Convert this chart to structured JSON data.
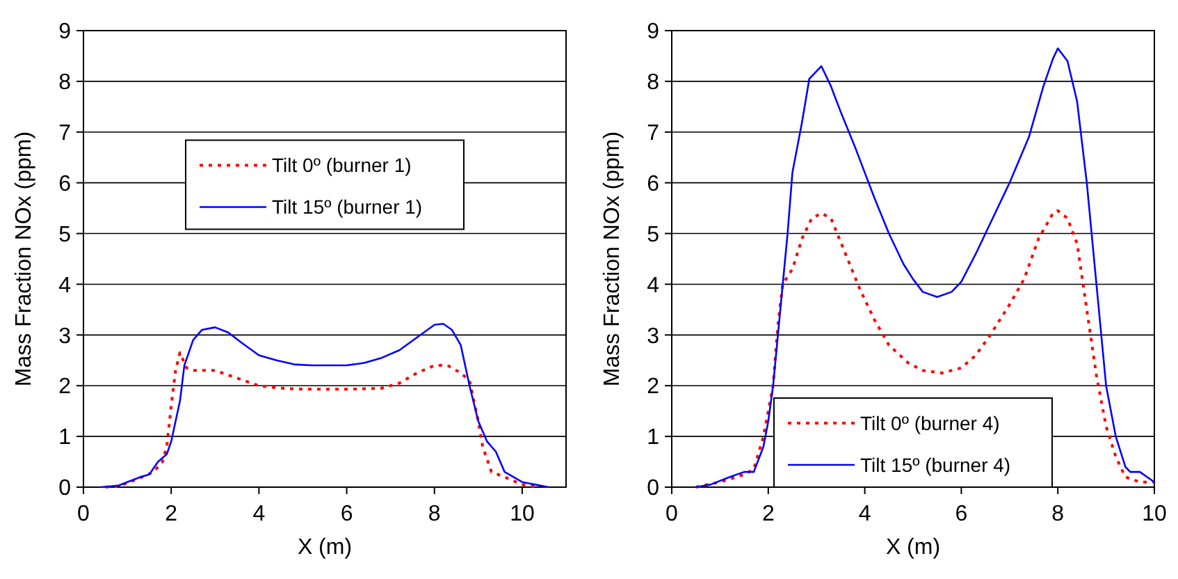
{
  "chart_data": [
    {
      "type": "line",
      "xlabel": "X (m)",
      "ylabel": "Mass Fraction NOx (ppm)",
      "xlim": [
        0,
        11
      ],
      "xticks": [
        0,
        2,
        4,
        6,
        8,
        10
      ],
      "ylim": [
        0,
        9
      ],
      "yticks": [
        0,
        1,
        2,
        3,
        4,
        5,
        6,
        7,
        8,
        9
      ],
      "grid": "y",
      "legend": "top",
      "series": [
        {
          "name": "Tilt 0º (burner 1)",
          "color": "#ff0000",
          "line_style": "dotted",
          "x": [
            0.5,
            0.8,
            1.2,
            1.6,
            1.8,
            1.9,
            2.0,
            2.1,
            2.2,
            2.35,
            2.5,
            3.0,
            3.5,
            4.0,
            4.5,
            5.0,
            6.0,
            6.8,
            7.2,
            7.6,
            8.0,
            8.3,
            8.6,
            8.8,
            9.0,
            9.1,
            9.3,
            9.6,
            10.0,
            10.4
          ],
          "values": [
            0,
            0.02,
            0.15,
            0.3,
            0.5,
            0.8,
            1.6,
            2.3,
            2.65,
            2.35,
            2.3,
            2.3,
            2.15,
            2.0,
            1.95,
            1.93,
            1.93,
            1.95,
            2.05,
            2.25,
            2.4,
            2.4,
            2.25,
            2.1,
            1.3,
            0.8,
            0.3,
            0.2,
            0.05,
            0
          ]
        },
        {
          "name": "Tilt 15º (burner 1)",
          "color": "#0000ff",
          "line_style": "solid",
          "x": [
            0.4,
            0.8,
            1.0,
            1.3,
            1.5,
            1.7,
            1.9,
            2.0,
            2.2,
            2.3,
            2.5,
            2.7,
            3.0,
            3.3,
            3.6,
            4.0,
            4.4,
            4.8,
            5.2,
            5.6,
            6.0,
            6.4,
            6.8,
            7.2,
            7.6,
            8.0,
            8.2,
            8.4,
            8.6,
            8.8,
            9.0,
            9.2,
            9.4,
            9.6,
            9.8,
            10.0,
            10.3,
            10.6
          ],
          "values": [
            0,
            0.03,
            0.1,
            0.2,
            0.25,
            0.5,
            0.65,
            0.9,
            1.7,
            2.4,
            2.9,
            3.1,
            3.15,
            3.05,
            2.85,
            2.6,
            2.5,
            2.42,
            2.4,
            2.4,
            2.4,
            2.45,
            2.55,
            2.7,
            2.95,
            3.2,
            3.22,
            3.1,
            2.8,
            2.0,
            1.3,
            0.9,
            0.7,
            0.3,
            0.2,
            0.1,
            0.05,
            0
          ]
        }
      ]
    },
    {
      "type": "line",
      "xlabel": "X (m)",
      "ylabel": "Mass Fraction NOx (ppm)",
      "xlim": [
        0,
        10
      ],
      "xticks": [
        0,
        2,
        4,
        6,
        8,
        10
      ],
      "ylim": [
        0,
        9
      ],
      "yticks": [
        0,
        1,
        2,
        3,
        4,
        5,
        6,
        7,
        8,
        9
      ],
      "grid": "y",
      "legend": "bottom",
      "series": [
        {
          "name": "Tilt 0º (burner 4)",
          "color": "#ff0000",
          "line_style": "dotted",
          "x": [
            0.5,
            1.0,
            1.5,
            1.7,
            1.9,
            2.1,
            2.2,
            2.3,
            2.5,
            2.7,
            2.9,
            3.1,
            3.3,
            3.6,
            3.9,
            4.2,
            4.5,
            4.9,
            5.2,
            5.6,
            6.0,
            6.3,
            6.6,
            7.0,
            7.3,
            7.6,
            7.9,
            8.0,
            8.2,
            8.4,
            8.6,
            8.8,
            9.0,
            9.2,
            9.4,
            9.7,
            10.0
          ],
          "values": [
            0,
            0.1,
            0.25,
            0.35,
            1.0,
            2.0,
            3.2,
            4.0,
            4.3,
            4.9,
            5.3,
            5.4,
            5.3,
            4.6,
            3.9,
            3.3,
            2.8,
            2.45,
            2.3,
            2.25,
            2.35,
            2.6,
            3.0,
            3.6,
            4.1,
            4.9,
            5.4,
            5.45,
            5.3,
            4.8,
            3.5,
            2.2,
            1.2,
            0.6,
            0.2,
            0.1,
            0.1
          ]
        },
        {
          "name": "Tilt 15º (burner 4)",
          "color": "#0000ff",
          "line_style": "solid",
          "x": [
            0.5,
            0.8,
            1.2,
            1.5,
            1.7,
            1.9,
            2.0,
            2.1,
            2.2,
            2.3,
            2.4,
            2.5,
            2.6,
            2.7,
            2.85,
            3.0,
            3.1,
            3.3,
            3.5,
            3.8,
            4.0,
            4.2,
            4.5,
            4.8,
            5.0,
            5.2,
            5.5,
            5.8,
            6.0,
            6.3,
            6.6,
            7.0,
            7.4,
            7.7,
            7.9,
            8.0,
            8.2,
            8.4,
            8.6,
            8.7,
            8.8,
            8.9,
            9.0,
            9.2,
            9.4,
            9.5,
            9.7,
            10.0
          ],
          "values": [
            0,
            0.05,
            0.2,
            0.3,
            0.3,
            0.8,
            1.3,
            2.0,
            3.0,
            4.0,
            5.0,
            6.2,
            6.7,
            7.2,
            8.05,
            8.2,
            8.3,
            7.9,
            7.4,
            6.7,
            6.2,
            5.7,
            5.0,
            4.4,
            4.1,
            3.85,
            3.75,
            3.85,
            4.05,
            4.6,
            5.2,
            6.0,
            6.9,
            7.9,
            8.45,
            8.65,
            8.4,
            7.6,
            6.0,
            5.0,
            4.0,
            3.0,
            2.0,
            1.0,
            0.4,
            0.3,
            0.3,
            0.1
          ]
        }
      ]
    }
  ]
}
